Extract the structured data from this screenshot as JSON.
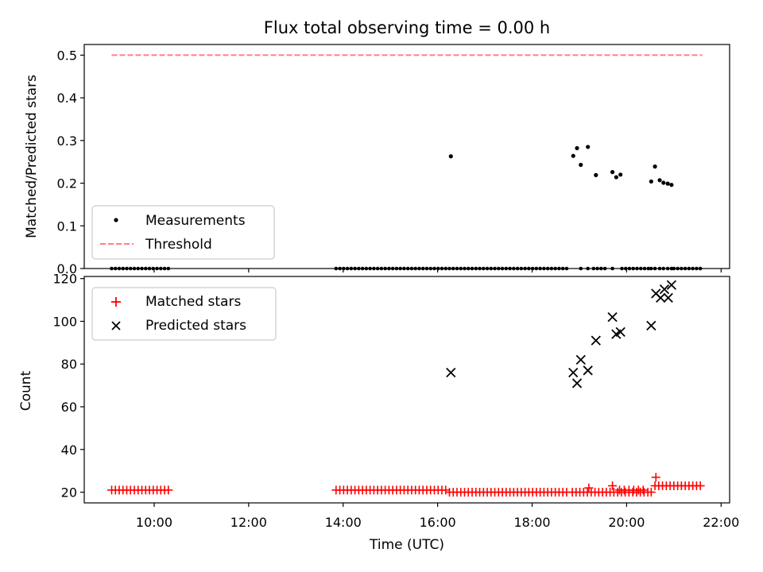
{
  "chart_data": [
    {
      "type": "scatter",
      "title": "Flux total observing time = 0.00 h",
      "xlabel": "",
      "ylabel": "Matched/Predicted stars",
      "xlim": [
        8.52,
        22.18
      ],
      "ylim": [
        0.0,
        0.525
      ],
      "yticks": [
        "0.0",
        "0.1",
        "0.2",
        "0.3",
        "0.4",
        "0.5"
      ],
      "grid": false,
      "legend": {
        "location": "lower-left",
        "entries": [
          {
            "label": "Measurements",
            "marker": "dot",
            "color": "#000000"
          },
          {
            "label": "Threshold",
            "marker": "dashed-line",
            "color": "#ff7f7f"
          }
        ]
      },
      "threshold": {
        "y": 0.5,
        "x_start": 9.1,
        "x_end": 21.6,
        "color": "#ff7f7f"
      },
      "measurements": {
        "zeros": {
          "ranges": [
            [
              9.1,
              10.3
            ],
            [
              13.85,
              18.8
            ],
            [
              19.3,
              19.6
            ],
            [
              19.9,
              20.5
            ],
            [
              21.0,
              21.6
            ]
          ],
          "step": 0.08
        },
        "points": [
          {
            "x": 16.28,
            "y": 0.263
          },
          {
            "x": 18.87,
            "y": 0.264
          },
          {
            "x": 18.95,
            "y": 0.282
          },
          {
            "x": 19.03,
            "y": 0.243
          },
          {
            "x": 19.18,
            "y": 0.285
          },
          {
            "x": 19.35,
            "y": 0.219
          },
          {
            "x": 19.7,
            "y": 0.226
          },
          {
            "x": 19.78,
            "y": 0.214
          },
          {
            "x": 19.87,
            "y": 0.22
          },
          {
            "x": 20.52,
            "y": 0.204
          },
          {
            "x": 20.6,
            "y": 0.239
          },
          {
            "x": 20.7,
            "y": 0.207
          },
          {
            "x": 20.78,
            "y": 0.201
          },
          {
            "x": 20.87,
            "y": 0.199
          },
          {
            "x": 20.95,
            "y": 0.196
          }
        ],
        "extra_zeros": [
          19.03,
          19.18,
          19.7,
          20.52,
          20.6,
          20.7,
          20.78,
          20.87,
          20.95
        ]
      }
    },
    {
      "type": "scatter",
      "title": "",
      "xlabel": "Time (UTC)",
      "ylabel": "Count",
      "xlim": [
        8.52,
        22.18
      ],
      "ylim": [
        15.0,
        121.0
      ],
      "yticks": [
        "20",
        "40",
        "60",
        "80",
        "100",
        "120"
      ],
      "xticks": [
        "10:00",
        "12:00",
        "14:00",
        "16:00",
        "18:00",
        "20:00",
        "22:00"
      ],
      "xtick_values": [
        10,
        12,
        14,
        16,
        18,
        20,
        22
      ],
      "grid": false,
      "legend": {
        "location": "top-left",
        "entries": [
          {
            "label": "Matched stars",
            "marker": "plus",
            "color": "#ff0000"
          },
          {
            "label": "Predicted stars",
            "marker": "x",
            "color": "#000000"
          }
        ]
      },
      "matched_stars": {
        "runs": [
          {
            "from": 9.1,
            "to": 10.3,
            "step": 0.08,
            "value": 21
          },
          {
            "from": 13.85,
            "to": 16.2,
            "step": 0.08,
            "value": 21
          },
          {
            "from": 16.25,
            "to": 18.8,
            "step": 0.08,
            "value": 20
          },
          {
            "from": 18.85,
            "to": 20.5,
            "step": 0.08,
            "value": 20
          },
          {
            "from": 20.6,
            "to": 21.6,
            "step": 0.08,
            "value": 23
          }
        ],
        "points": [
          {
            "x": 19.2,
            "y": 22
          },
          {
            "x": 19.7,
            "y": 23
          },
          {
            "x": 19.85,
            "y": 21
          },
          {
            "x": 19.95,
            "y": 21
          },
          {
            "x": 20.05,
            "y": 21
          },
          {
            "x": 20.15,
            "y": 21
          },
          {
            "x": 20.25,
            "y": 21
          },
          {
            "x": 20.35,
            "y": 21
          },
          {
            "x": 20.52,
            "y": 20
          },
          {
            "x": 20.62,
            "y": 27
          }
        ]
      },
      "predicted_stars": [
        {
          "x": 16.28,
          "y": 76
        },
        {
          "x": 18.87,
          "y": 76
        },
        {
          "x": 18.95,
          "y": 71
        },
        {
          "x": 19.03,
          "y": 82
        },
        {
          "x": 19.18,
          "y": 77
        },
        {
          "x": 19.35,
          "y": 91
        },
        {
          "x": 19.7,
          "y": 102
        },
        {
          "x": 19.78,
          "y": 94
        },
        {
          "x": 19.87,
          "y": 95
        },
        {
          "x": 20.52,
          "y": 98
        },
        {
          "x": 20.62,
          "y": 113
        },
        {
          "x": 20.72,
          "y": 111
        },
        {
          "x": 20.8,
          "y": 115
        },
        {
          "x": 20.88,
          "y": 111
        },
        {
          "x": 20.95,
          "y": 117
        }
      ]
    }
  ]
}
